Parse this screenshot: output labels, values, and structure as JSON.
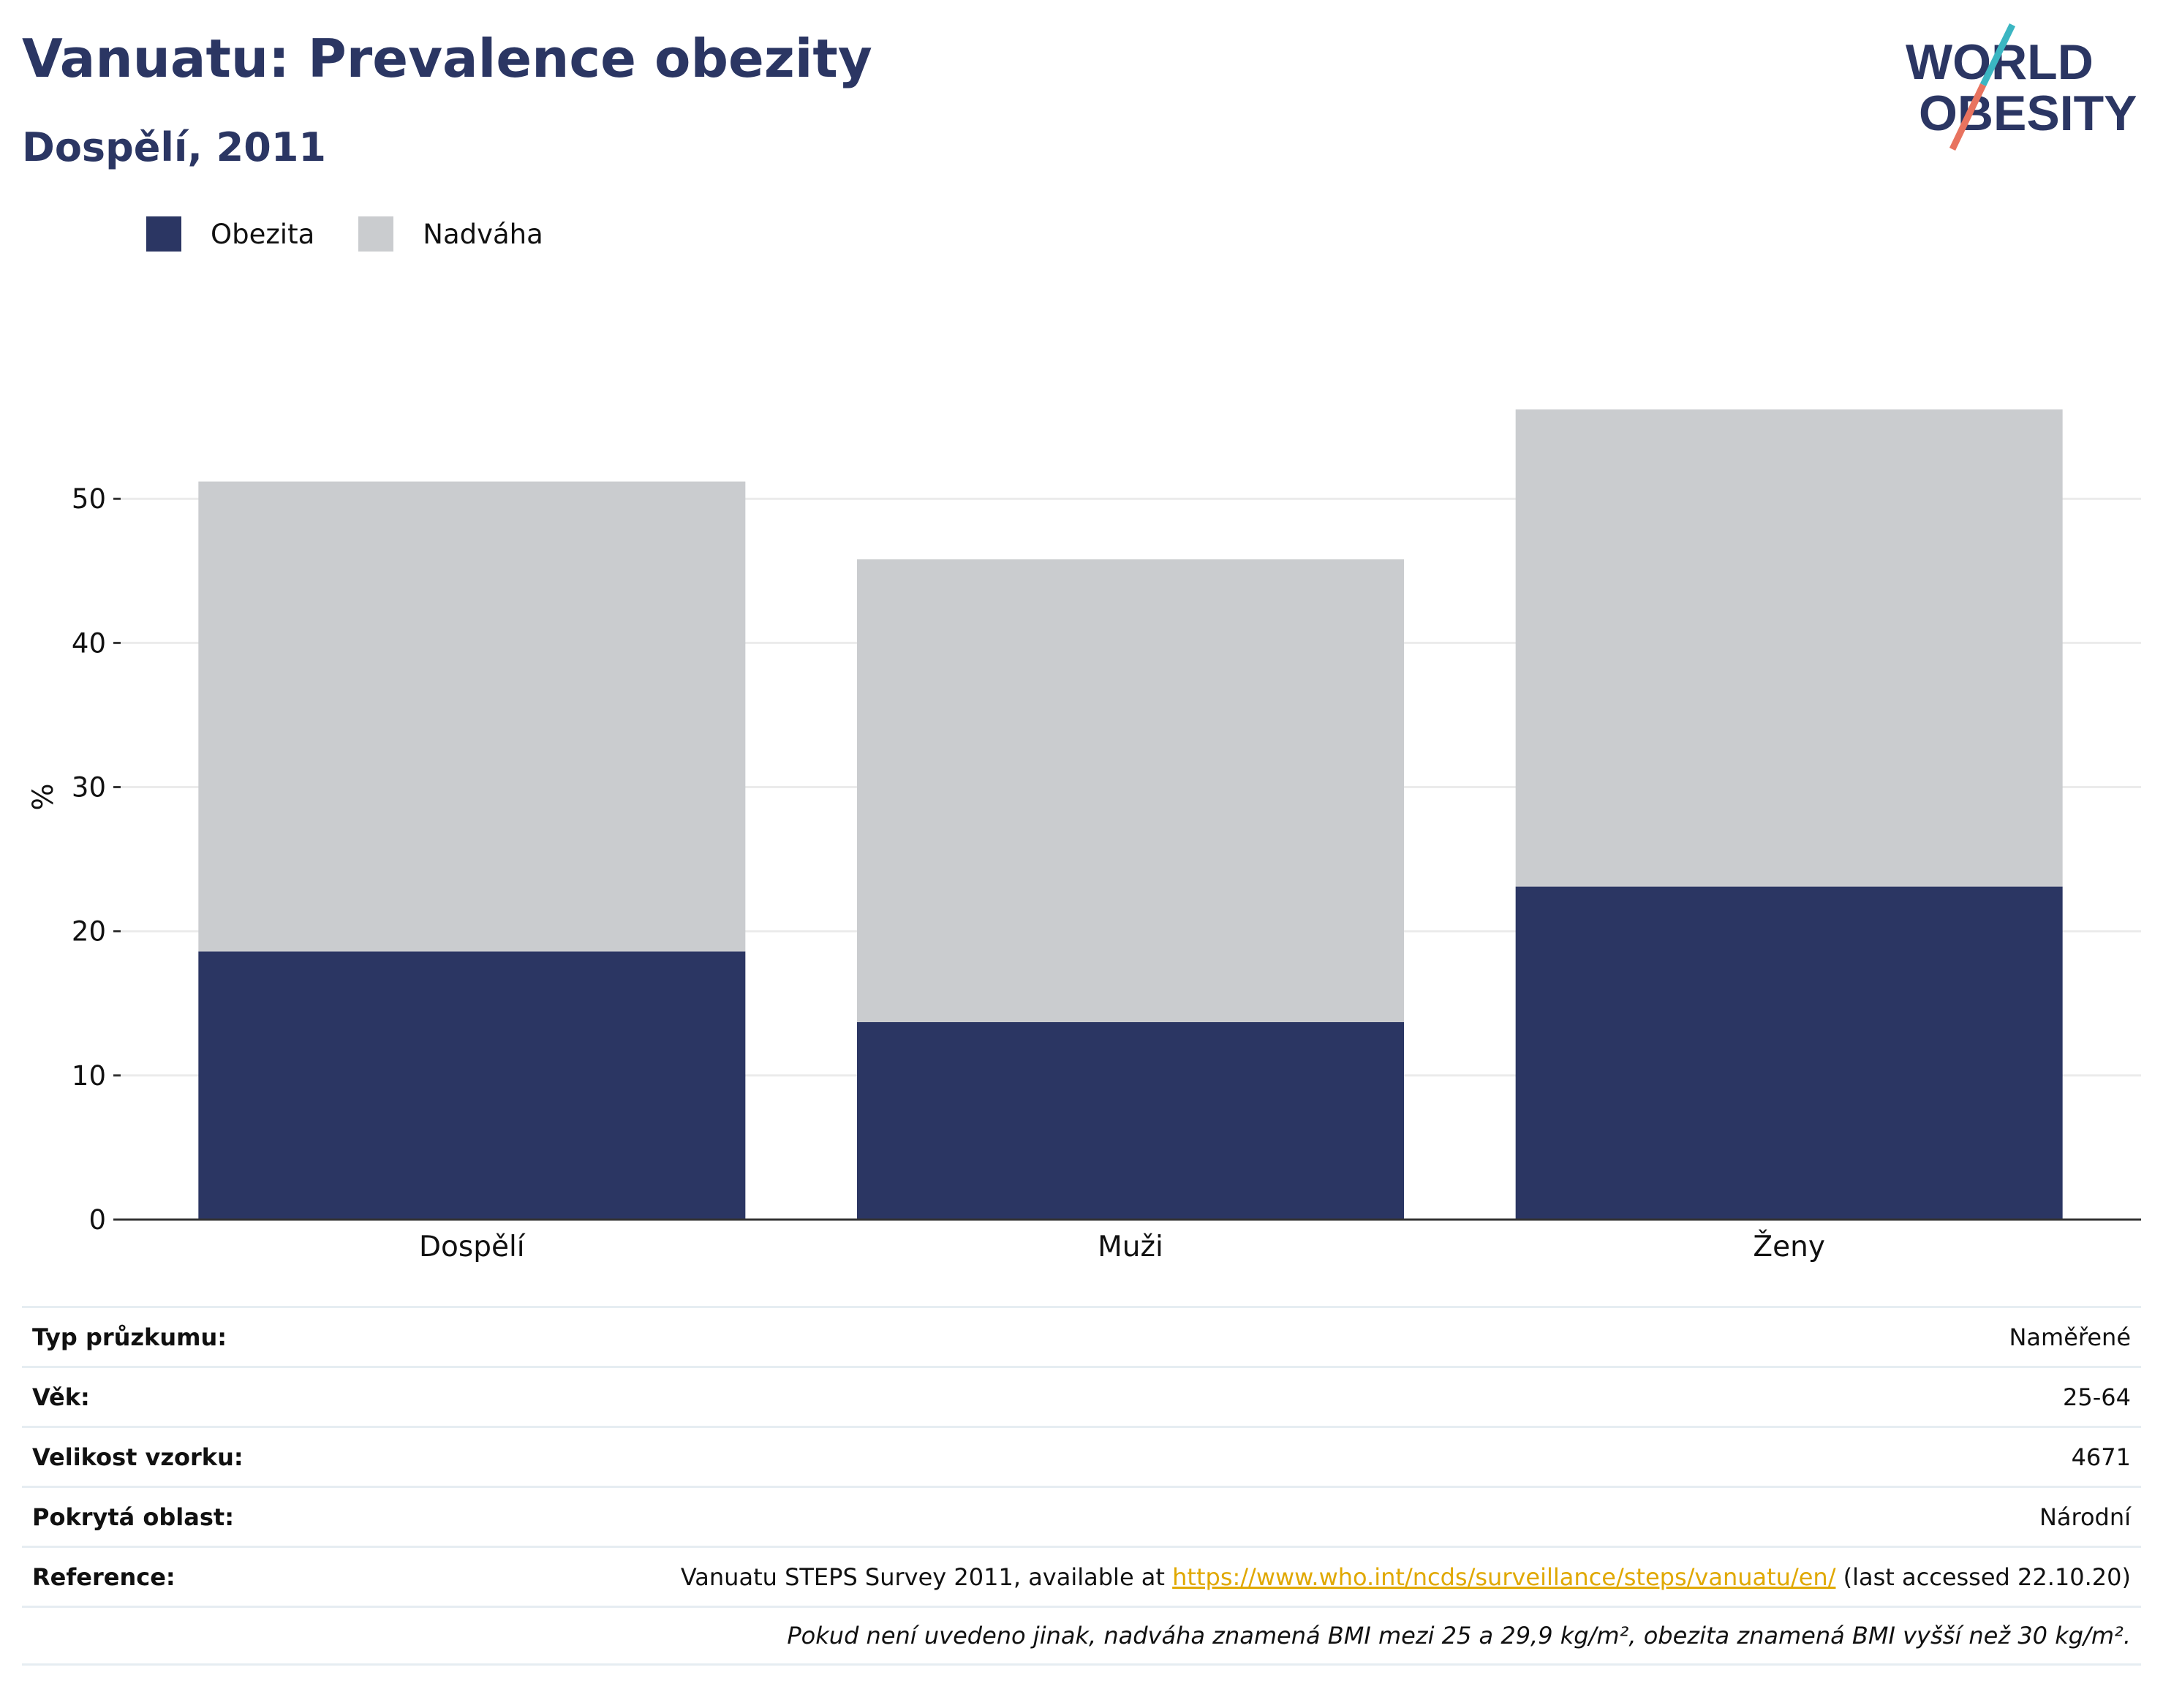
{
  "header": {
    "title": "Vanuatu: Prevalence obezity",
    "subtitle": "Dospělí, 2011"
  },
  "logo": {
    "line1": "WORLD",
    "line2": "OBESITY",
    "colors": {
      "text": "#2b3663",
      "slash_teal": "#3bb6c2",
      "slash_coral": "#e8735f"
    }
  },
  "legend": [
    {
      "label": "Obezita",
      "color": "#2b3663"
    },
    {
      "label": "Nadváha",
      "color": "#cacccf"
    }
  ],
  "chart_data": {
    "type": "bar",
    "stacked": true,
    "categories": [
      "Dospělí",
      "Muži",
      "Ženy"
    ],
    "series": [
      {
        "name": "Obezita",
        "color": "#2b3663",
        "values": [
          18.6,
          13.7,
          23.1
        ]
      },
      {
        "name": "Nadváha",
        "color": "#cacccf",
        "values": [
          32.6,
          32.1,
          33.1
        ]
      }
    ],
    "ylabel": "%",
    "xlabel": "",
    "ylim": [
      0,
      56.2
    ],
    "yticks": [
      0,
      10,
      20,
      30,
      40,
      50
    ],
    "grid": true,
    "legend_position": "top-left"
  },
  "info_table": {
    "rows": [
      {
        "key": "Typ průzkumu:",
        "value": "Naměřené"
      },
      {
        "key": "Věk:",
        "value": "25-64"
      },
      {
        "key": "Velikost vzorku:",
        "value": "4671"
      },
      {
        "key": "Pokrytá oblast:",
        "value": "Národní"
      }
    ],
    "reference": {
      "key": "Reference:",
      "prefix": "Vanuatu STEPS Survey 2011, available at ",
      "link": "https://www.who.int/ncds/surveillance/steps/vanuatu/en/",
      "suffix": " (last accessed 22.10.20)"
    },
    "note": "Pokud není uvedeno jinak, nadváha znamená BMI mezi 25 a 29,9 kg/m², obezita znamená BMI vyšší než 30 kg/m²."
  }
}
